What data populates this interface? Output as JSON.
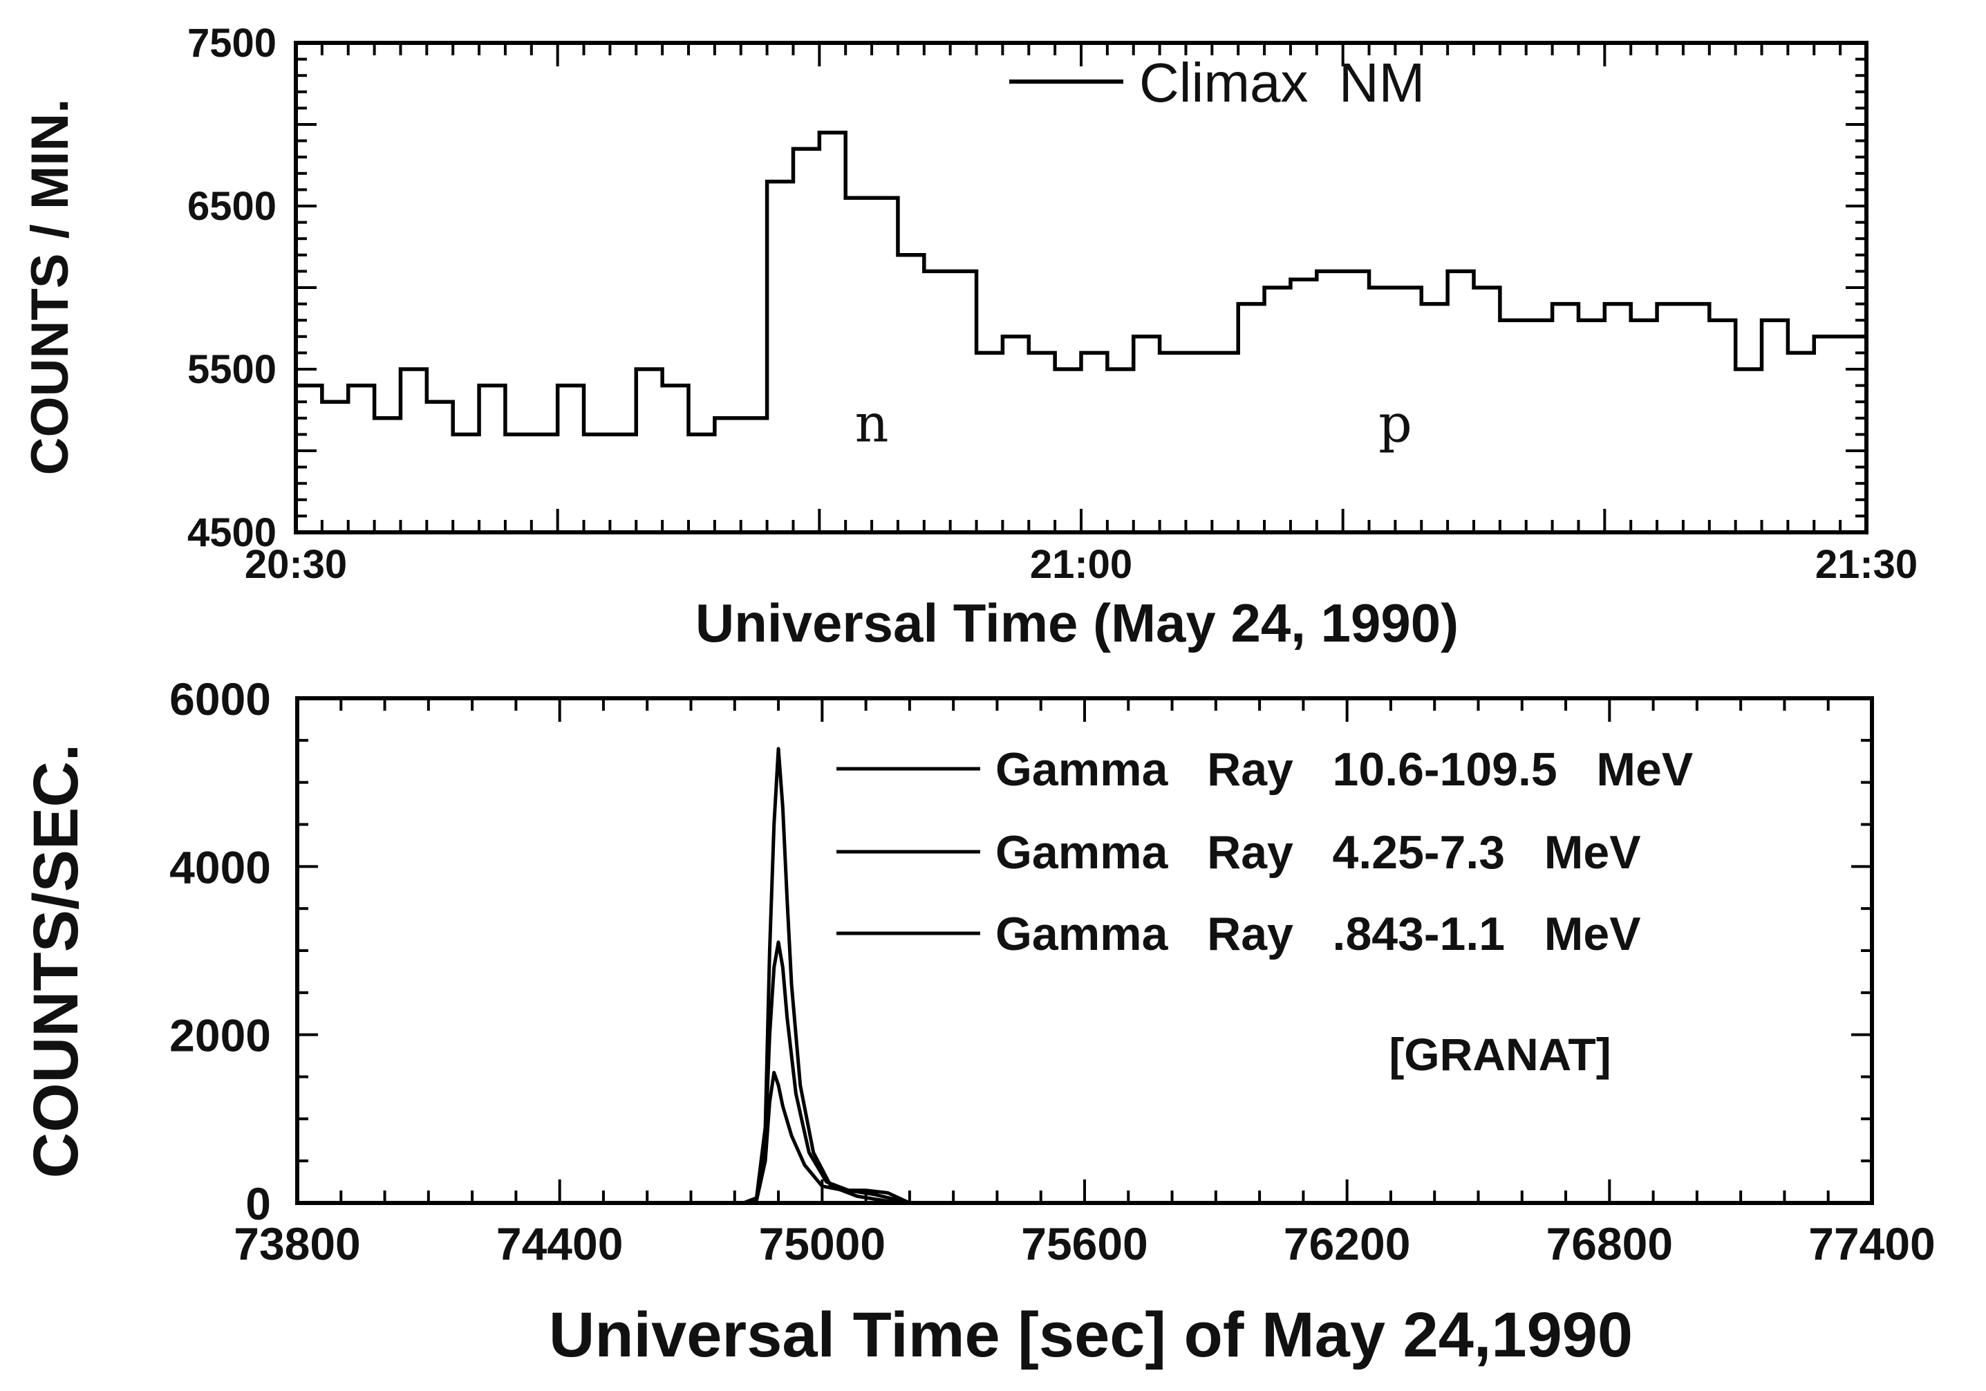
{
  "chart_data": [
    {
      "type": "line",
      "step": true,
      "x_axis": {
        "label": "Universal Time (May 24, 1990)",
        "unit": "minutes after 20:00 UT",
        "range": [
          30,
          90
        ],
        "tick_values": [
          30,
          60,
          90
        ],
        "tick_labels": [
          "20:30",
          "21:00",
          "21:30"
        ]
      },
      "y_axis": {
        "label": "COUNTS / MIN.",
        "range": [
          4500,
          7500
        ],
        "tick_values": [
          4500,
          5500,
          6500,
          7500
        ],
        "tick_labels": [
          "4500",
          "5500",
          "6500",
          "7500"
        ]
      },
      "legend": {
        "entries": [
          "Climax  NM"
        ],
        "position": "top-center"
      },
      "annotations": [
        {
          "text": "n",
          "x": 52,
          "y": 5100
        },
        {
          "text": "p",
          "x": 72,
          "y": 5100
        }
      ],
      "series": [
        {
          "name": "Climax  NM",
          "x": [
            30,
            31,
            32,
            33,
            34,
            35,
            36,
            37,
            38,
            39,
            40,
            41,
            42,
            43,
            44,
            45,
            46,
            47,
            48,
            49,
            50,
            51,
            52,
            53,
            54,
            55,
            56,
            57,
            58,
            59,
            60,
            61,
            62,
            63,
            64,
            65,
            66,
            67,
            68,
            69,
            70,
            71,
            72,
            73,
            74,
            75,
            76,
            77,
            78,
            79,
            80,
            81,
            82,
            83,
            84,
            85,
            86,
            87,
            88,
            89
          ],
          "y": [
            5400,
            5300,
            5400,
            5200,
            5500,
            5300,
            5100,
            5400,
            5100,
            5100,
            5400,
            5100,
            5100,
            5500,
            5400,
            5100,
            5200,
            5200,
            6650,
            6850,
            6950,
            6550,
            6550,
            6200,
            6100,
            6100,
            5600,
            5700,
            5600,
            5500,
            5600,
            5500,
            5700,
            5600,
            5600,
            5600,
            5900,
            6000,
            6050,
            6100,
            6100,
            6000,
            6000,
            5900,
            6100,
            6000,
            5800,
            5800,
            5900,
            5800,
            5900,
            5800,
            5900,
            5900,
            5800,
            5500,
            5800,
            5600,
            5700,
            5700
          ]
        }
      ]
    },
    {
      "type": "line",
      "x_axis": {
        "label": "Universal Time [sec] of May 24,1990",
        "range": [
          73800,
          77400
        ],
        "tick_values": [
          73800,
          74400,
          75000,
          75600,
          76200,
          76800,
          77400
        ],
        "tick_labels": [
          "73800",
          "74400",
          "75000",
          "75600",
          "76200",
          "76800",
          "77400"
        ]
      },
      "y_axis": {
        "label": "COUNTS/SEC.",
        "range": [
          0,
          6000
        ],
        "tick_values": [
          0,
          2000,
          4000,
          6000
        ],
        "tick_labels": [
          "0",
          "2000",
          "4000",
          "6000"
        ]
      },
      "legend": {
        "entries": [
          "Gamma   Ray   10.6-109.5   MeV",
          "Gamma   Ray   4.25-7.3   MeV",
          "Gamma   Ray   .843-1.1   MeV"
        ],
        "position": "top-right"
      },
      "annotations": [
        {
          "text": "[GRANAT]"
        }
      ],
      "series": [
        {
          "name": "Gamma   Ray   10.6-109.5   MeV",
          "x": [
            74700,
            74820,
            74850,
            74870,
            74880,
            74890,
            74900,
            74910,
            74920,
            74930,
            74950,
            74980,
            75020,
            75080,
            75150,
            75200
          ],
          "y": [
            0,
            0,
            60,
            900,
            3000,
            4500,
            5400,
            4700,
            3600,
            2600,
            1400,
            600,
            200,
            80,
            20,
            0
          ]
        },
        {
          "name": "Gamma   Ray   4.25-7.3   MeV",
          "x": [
            74700,
            74820,
            74850,
            74870,
            74880,
            74890,
            74900,
            74910,
            74920,
            74940,
            74970,
            75010,
            75060,
            75120,
            75200
          ],
          "y": [
            0,
            0,
            40,
            700,
            2000,
            2800,
            3100,
            2800,
            2200,
            1300,
            600,
            250,
            150,
            100,
            0
          ]
        },
        {
          "name": "Gamma   Ray   .843-1.1   MeV",
          "x": [
            74700,
            74820,
            74850,
            74870,
            74880,
            74890,
            74900,
            74910,
            74930,
            74960,
            75000,
            75050,
            75100,
            75150,
            75200
          ],
          "y": [
            0,
            0,
            30,
            500,
            1200,
            1550,
            1400,
            1150,
            800,
            450,
            200,
            150,
            150,
            120,
            0
          ]
        }
      ]
    }
  ]
}
